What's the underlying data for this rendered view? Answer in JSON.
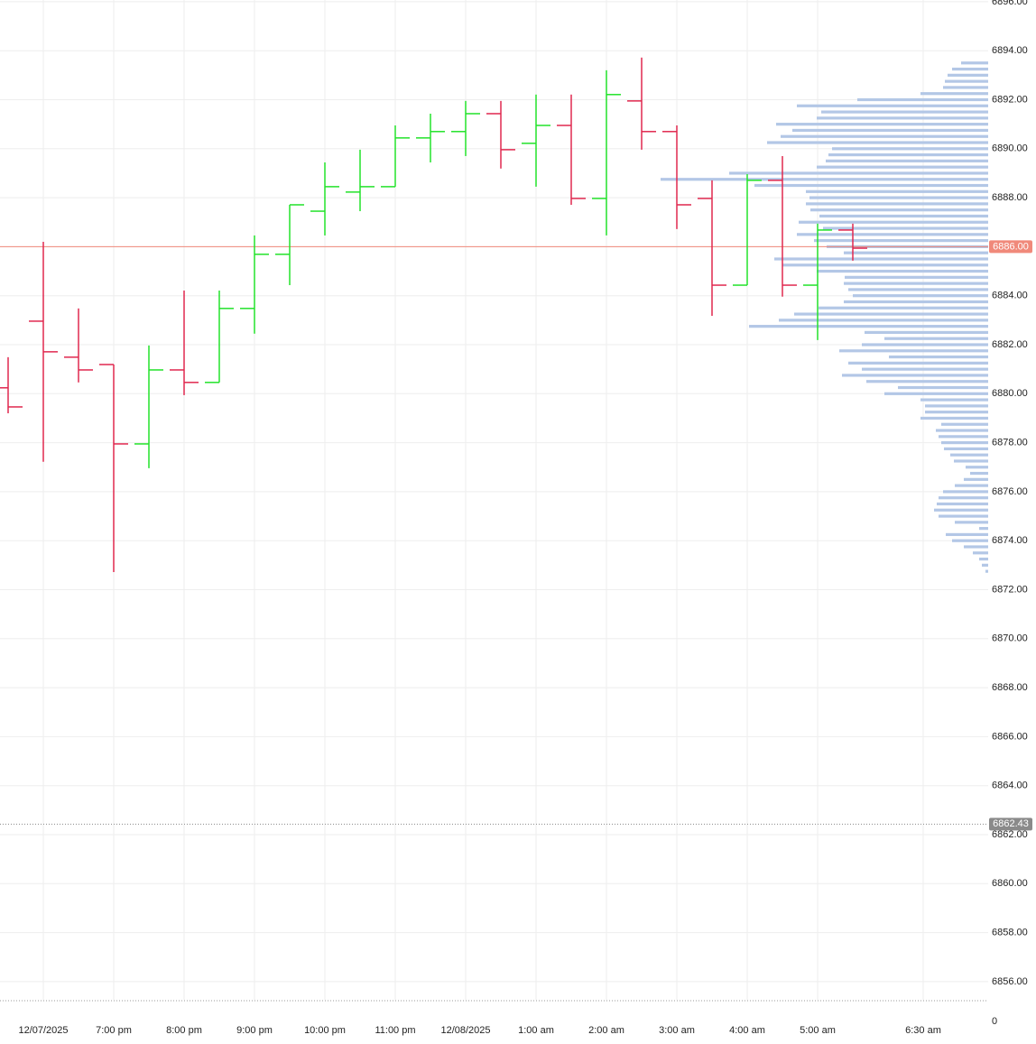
{
  "chart_data": {
    "type": "ohlc",
    "categories": [
      null,
      "12/07/2025",
      null,
      "7:00 pm",
      null,
      "8:00 pm",
      null,
      "9:00 pm",
      null,
      "10:00 pm",
      null,
      "11:00 pm",
      null,
      "12/08/2025",
      null,
      "1:00 am",
      null,
      "2:00 am",
      null,
      "3:00 am",
      null,
      "4:00 am",
      null,
      "5:00 am",
      null,
      null,
      "6:30 am"
    ],
    "open": [
      6880.24,
      6882.96,
      6881.49,
      6881.19,
      6877.95,
      6880.97,
      6880.46,
      6883.48,
      6885.69,
      6887.45,
      6888.23,
      6888.45,
      6890.44,
      6890.7,
      6891.43,
      6890.22,
      6890.95,
      6887.97,
      6891.95,
      6890.7,
      6887.97,
      6884.43,
      6888.71,
      6884.43,
      6886.68,
      null,
      null
    ],
    "high": [
      6881.49,
      6886.2,
      6883.48,
      6881.19,
      6881.97,
      6884.21,
      6884.21,
      6886.46,
      6887.71,
      6889.44,
      6889.96,
      6890.95,
      6891.43,
      6891.95,
      6891.95,
      6892.21,
      6892.21,
      6893.2,
      6893.72,
      6890.95,
      6888.71,
      6888.96,
      6889.7,
      6886.94,
      6886.94,
      null,
      null
    ],
    "low": [
      6879.2,
      6877.22,
      6880.46,
      6872.72,
      6876.96,
      6879.94,
      6880.46,
      6882.45,
      6884.43,
      6886.46,
      6887.45,
      6888.45,
      6889.44,
      6889.7,
      6889.19,
      6888.45,
      6887.71,
      6886.46,
      6889.96,
      6886.72,
      6883.18,
      6884.43,
      6883.96,
      6882.19,
      6885.43,
      null,
      null
    ],
    "close": [
      6879.46,
      6881.71,
      6880.97,
      6877.95,
      6880.97,
      6880.46,
      6883.48,
      6885.69,
      6887.71,
      6888.45,
      6888.45,
      6890.44,
      6890.7,
      6891.43,
      6889.96,
      6890.95,
      6887.97,
      6892.21,
      6890.7,
      6887.71,
      6884.43,
      6888.71,
      6884.43,
      6886.68,
      6885.94,
      null,
      null
    ],
    "up_color": "#22e22a",
    "down_color": "#e0284f",
    "profile": {
      "color": "#b3c7e6",
      "levels": [
        6893.5,
        6893.25,
        6893,
        6892.75,
        6892.5,
        6892.25,
        6892,
        6891.75,
        6891.5,
        6891.25,
        6891,
        6890.75,
        6890.5,
        6890.25,
        6890,
        6889.75,
        6889.5,
        6889.25,
        6889,
        6888.75,
        6888.5,
        6888.25,
        6888,
        6887.75,
        6887.5,
        6887.25,
        6887,
        6886.75,
        6886.5,
        6886.25,
        6886,
        6885.75,
        6885.5,
        6885.25,
        6885,
        6884.75,
        6884.5,
        6884.25,
        6884,
        6883.75,
        6883.5,
        6883.25,
        6883,
        6882.75,
        6882.5,
        6882.25,
        6882,
        6881.75,
        6881.5,
        6881.25,
        6881,
        6880.75,
        6880.5,
        6880.25,
        6880,
        6879.75,
        6879.5,
        6879.25,
        6879,
        6878.75,
        6878.5,
        6878.25,
        6878,
        6877.75,
        6877.5,
        6877.25,
        6877,
        6876.75,
        6876.5,
        6876.25,
        6876,
        6875.75,
        6875.5,
        6875.25,
        6875,
        6874.75,
        6874.5,
        6874.25,
        6874,
        6873.75,
        6873.5,
        6873.25,
        6873,
        6872.75
      ],
      "values": [
        30,
        40,
        45,
        48,
        50,
        75,
        145,
        212,
        185,
        190,
        235,
        217,
        230,
        245,
        173,
        177,
        180,
        190,
        287,
        363,
        259,
        202,
        198,
        202,
        197,
        187,
        210,
        183,
        212,
        193,
        179,
        160,
        237,
        228,
        190,
        159,
        160,
        155,
        150,
        160,
        188,
        215,
        232,
        265,
        137,
        115,
        140,
        165,
        110,
        155,
        140,
        162,
        135,
        100,
        115,
        75,
        70,
        70,
        75,
        52,
        58,
        55,
        52,
        49,
        42,
        38,
        25,
        20,
        27,
        37,
        50,
        55,
        57,
        60,
        55,
        37,
        10,
        47,
        40,
        27,
        17,
        10,
        7,
        3
      ]
    },
    "ylim": [
      6855.26,
      6896.07
    ],
    "yticks": [
      {
        "value": 6856,
        "label": "6856.00"
      },
      {
        "value": 6858,
        "label": "6858.00"
      },
      {
        "value": 6860,
        "label": "6860.00"
      },
      {
        "value": 6862,
        "label": "6862.00"
      },
      {
        "value": 6864,
        "label": "6864.00"
      },
      {
        "value": 6866,
        "label": "6866.00"
      },
      {
        "value": 6868,
        "label": "6868.00"
      },
      {
        "value": 6870,
        "label": "6870.00"
      },
      {
        "value": 6872,
        "label": "6872.00"
      },
      {
        "value": 6874,
        "label": "6874.00"
      },
      {
        "value": 6876,
        "label": "6876.00"
      },
      {
        "value": 6878,
        "label": "6878.00"
      },
      {
        "value": 6880,
        "label": "6880.00"
      },
      {
        "value": 6882,
        "label": "6882.00"
      },
      {
        "value": 6884,
        "label": "6884.00"
      },
      {
        "value": 6886,
        "label": "6886.00"
      },
      {
        "value": 6888,
        "label": "6888.00"
      },
      {
        "value": 6890,
        "label": "6890.00"
      },
      {
        "value": 6892,
        "label": "6892.00"
      },
      {
        "value": 6894,
        "label": "6894.00"
      },
      {
        "value": 6896,
        "label": "6896.00"
      }
    ],
    "last_price": {
      "value": 6886,
      "label": "6886.00",
      "color": "#f0897a"
    },
    "marker_price": {
      "value": 6862.43,
      "label": "6862.43",
      "color": "#8a8a8a"
    },
    "volume_yticks": [
      0
    ],
    "grid": true
  }
}
